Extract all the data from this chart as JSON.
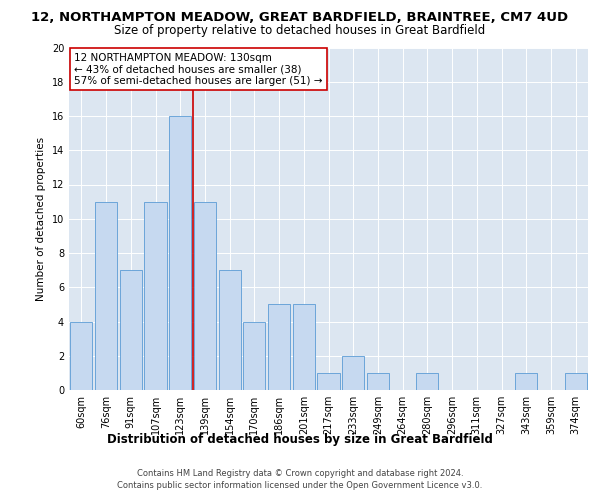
{
  "title1": "12, NORTHAMPTON MEADOW, GREAT BARDFIELD, BRAINTREE, CM7 4UD",
  "title2": "Size of property relative to detached houses in Great Bardfield",
  "xlabel": "Distribution of detached houses by size in Great Bardfield",
  "ylabel": "Number of detached properties",
  "categories": [
    "60sqm",
    "76sqm",
    "91sqm",
    "107sqm",
    "123sqm",
    "139sqm",
    "154sqm",
    "170sqm",
    "186sqm",
    "201sqm",
    "217sqm",
    "233sqm",
    "249sqm",
    "264sqm",
    "280sqm",
    "296sqm",
    "311sqm",
    "327sqm",
    "343sqm",
    "359sqm",
    "374sqm"
  ],
  "values": [
    4,
    11,
    7,
    11,
    16,
    11,
    7,
    4,
    5,
    5,
    1,
    2,
    1,
    0,
    1,
    0,
    0,
    0,
    1,
    0,
    1
  ],
  "bar_color": "#c6d9f0",
  "bar_edge_color": "#5b9bd5",
  "ref_line_x": 4.5,
  "annotation_text": "12 NORTHAMPTON MEADOW: 130sqm\n← 43% of detached houses are smaller (38)\n57% of semi-detached houses are larger (51) →",
  "annotation_box_color": "#ffffff",
  "annotation_box_edge": "#cc0000",
  "annotation_text_color": "#000000",
  "ref_line_color": "#cc0000",
  "ylim": [
    0,
    20
  ],
  "yticks": [
    0,
    2,
    4,
    6,
    8,
    10,
    12,
    14,
    16,
    18,
    20
  ],
  "footer": "Contains HM Land Registry data © Crown copyright and database right 2024.\nContains public sector information licensed under the Open Government Licence v3.0.",
  "bg_color": "#dce6f1",
  "fig_bg_color": "#ffffff",
  "title1_fontsize": 9.5,
  "title2_fontsize": 8.5,
  "xlabel_fontsize": 8.5,
  "ylabel_fontsize": 7.5,
  "tick_fontsize": 7,
  "annotation_fontsize": 7.5,
  "footer_fontsize": 6
}
